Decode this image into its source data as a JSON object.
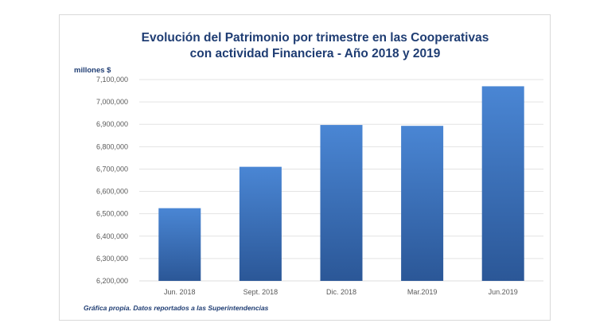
{
  "chart_data": {
    "type": "bar",
    "title_lines": [
      "Evolución del Patrimonio por trimestre en las Cooperativas",
      "con actividad Financiera - Año 2018 y 2019"
    ],
    "unit_label": "millones $",
    "categories": [
      "Jun. 2018",
      "Sept. 2018",
      "Dic. 2018",
      "Mar.2019",
      "Jun.2019"
    ],
    "values": [
      6525000,
      6710000,
      6897000,
      6893000,
      7070000
    ],
    "ylim": [
      6200000,
      7100000
    ],
    "y_ticks": [
      6200000,
      6300000,
      6400000,
      6500000,
      6600000,
      6700000,
      6800000,
      6900000,
      7000000,
      7100000
    ],
    "y_tick_labels": [
      "6,200,000",
      "6,300,000",
      "6,400,000",
      "6,500,000",
      "6,600,000",
      "6,700,000",
      "6,800,000",
      "6,900,000",
      "7,000,000",
      "7,100,000"
    ],
    "grid": true,
    "legend": "none",
    "footnote": "Gráfica propia. Datos reportados a las Superintendencias",
    "colors": {
      "bar_top": "#4a86d4",
      "bar_bottom": "#2b5797",
      "title": "#1f3d73",
      "unit": "#1f3d73",
      "footnote": "#1f3d73",
      "gridline": "#e3e3e3",
      "tick_text": "#595959"
    }
  }
}
